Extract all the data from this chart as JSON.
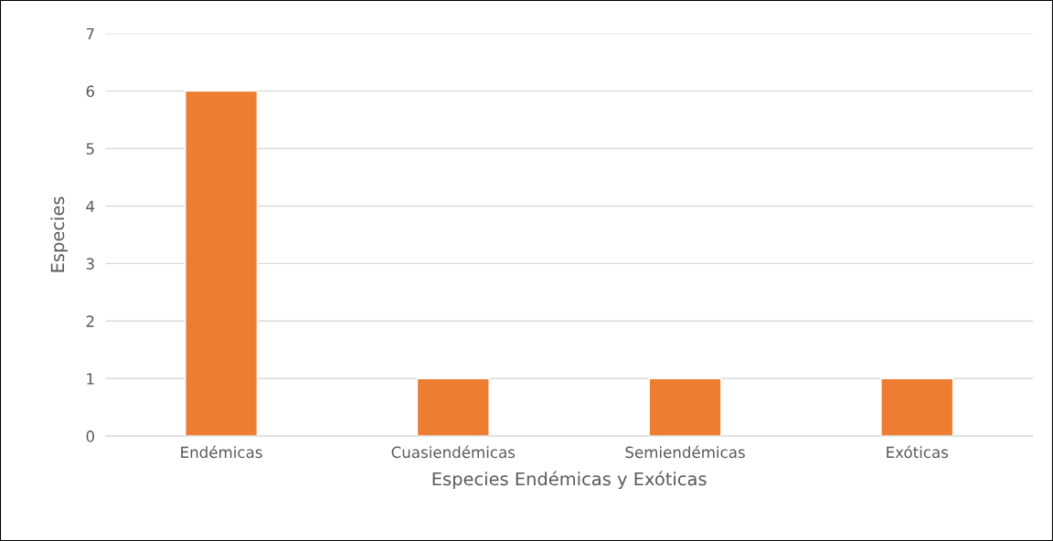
{
  "chart_data": {
    "type": "bar",
    "xlabel": "Especies Endémicas y Exóticas",
    "ylabel": "Especies",
    "categories": [
      "Endémicas",
      "Cuasiendémicas",
      "Semiendémicas",
      "Exóticas"
    ],
    "values": [
      6,
      1,
      1,
      1
    ],
    "color": "#ed7d31",
    "ylim": [
      0,
      7
    ],
    "yticks": [
      0,
      1,
      2,
      3,
      4,
      5,
      6,
      7
    ],
    "grid": "y",
    "legend": false
  }
}
